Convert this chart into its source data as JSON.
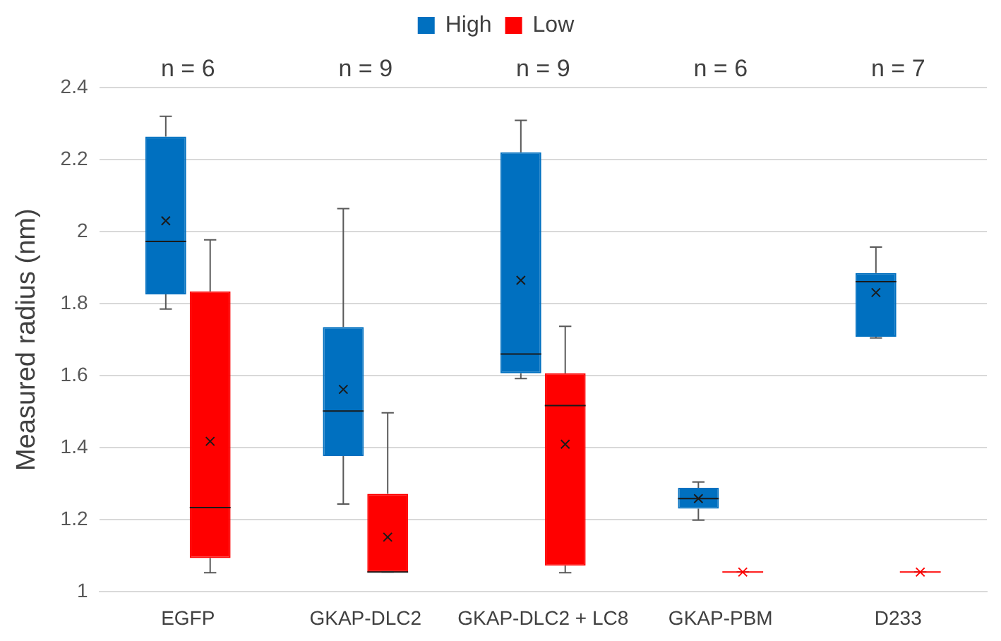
{
  "chart_data": {
    "type": "box",
    "ylabel": "Measured radius (nm)",
    "categories": [
      "EGFP",
      "GKAP-DLC2",
      "GKAP-DLC2 + LC8",
      "GKAP-PBM",
      "D233"
    ],
    "series": [
      {
        "name": "High",
        "color": "#0070c0",
        "boxes": [
          {
            "low": 1.785,
            "q1": 1.826,
            "median": 1.973,
            "q3": 2.264,
            "high": 2.32,
            "mean": 2.03
          },
          {
            "low": 1.244,
            "q1": 1.377,
            "median": 1.502,
            "q3": 1.735,
            "high": 2.064,
            "mean": 1.562
          },
          {
            "low": 1.592,
            "q1": 1.607,
            "median": 1.66,
            "q3": 2.22,
            "high": 2.309,
            "mean": 1.865
          },
          {
            "low": 1.199,
            "q1": 1.231,
            "median": 1.259,
            "q3": 1.289,
            "high": 1.305,
            "mean": 1.259
          },
          {
            "low": 1.705,
            "q1": 1.708,
            "median": 1.861,
            "q3": 1.885,
            "high": 1.957,
            "mean": 1.831
          }
        ]
      },
      {
        "name": "Low",
        "color": "#ff0000",
        "boxes": [
          {
            "low": 1.053,
            "q1": 1.094,
            "median": 1.234,
            "q3": 1.834,
            "high": 1.977,
            "mean": 1.418
          },
          {
            "low": 1.055,
            "q1": 1.055,
            "median": 1.055,
            "q3": 1.272,
            "high": 1.497,
            "mean": 1.152
          },
          {
            "low": 1.053,
            "q1": 1.073,
            "median": 1.517,
            "q3": 1.607,
            "high": 1.737,
            "mean": 1.41
          },
          {
            "low": 1.055,
            "q1": 1.055,
            "median": 1.055,
            "q3": 1.055,
            "high": 1.055,
            "mean": 1.055
          },
          {
            "low": 1.055,
            "q1": 1.055,
            "median": 1.055,
            "q3": 1.055,
            "high": 1.055,
            "mean": 1.055
          }
        ]
      }
    ],
    "annotations": [
      "n = 6",
      "n = 9",
      "n = 9",
      "n = 6",
      "n = 7"
    ],
    "ylim": [
      1,
      2.4
    ],
    "yticks": [
      1,
      1.2,
      1.4,
      1.6,
      1.8,
      2,
      2.2,
      2.4
    ],
    "grid": "y",
    "legend": "top"
  }
}
